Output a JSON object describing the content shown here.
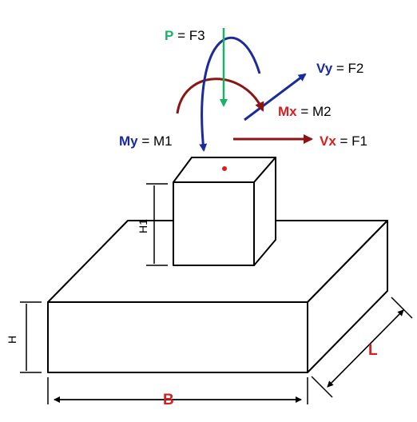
{
  "labels": {
    "p_prefix": "P",
    "p_suffix": " = F3",
    "vy_prefix": "Vy",
    "vy_suffix": " = F2",
    "mx_prefix": "Mx",
    "mx_suffix": " = M2",
    "my_prefix": "My",
    "my_suffix": " = M1",
    "vx_prefix": "Vx",
    "vx_suffix": " = F1"
  },
  "dimensions": {
    "h1": "H1",
    "h": "H",
    "l": "L",
    "b": "B"
  },
  "colors": {
    "green": "#19b266",
    "blue": "#1a2b9c",
    "darkred": "#8b1414",
    "red": "#d81e1e",
    "black": "#000000"
  }
}
